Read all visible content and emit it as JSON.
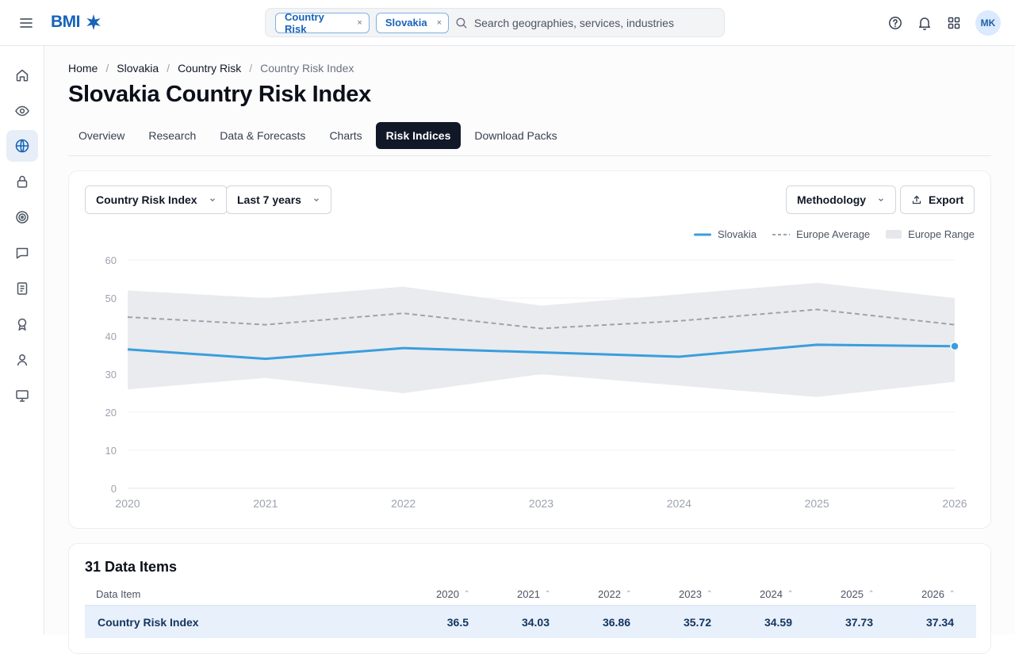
{
  "header": {
    "brand": "BMI",
    "chips": [
      {
        "label": "Country Risk",
        "remove": "×"
      },
      {
        "label": "Slovakia",
        "remove": "×"
      }
    ],
    "search_placeholder": "Search geographies, services, industries",
    "avatar_initials": "MK"
  },
  "sidebar": {
    "items": [
      {
        "icon": "home-icon"
      },
      {
        "icon": "eye-icon"
      },
      {
        "icon": "globe-icon",
        "active": true
      },
      {
        "icon": "lock-icon"
      },
      {
        "icon": "target-icon"
      },
      {
        "icon": "chat-icon"
      },
      {
        "icon": "document-icon"
      },
      {
        "icon": "award-icon"
      },
      {
        "icon": "user-icon"
      },
      {
        "icon": "monitor-icon"
      }
    ]
  },
  "breadcrumb": {
    "items": [
      "Home",
      "Slovakia",
      "Country Risk",
      "Country Risk Index"
    ],
    "sep": "/"
  },
  "page": {
    "title": "Slovakia Country Risk Index"
  },
  "tabs": [
    "Overview",
    "Research",
    "Data & Forecasts",
    "Charts",
    "Risk Indices",
    "Download Packs"
  ],
  "controls": {
    "index_select": "Country Risk Index",
    "range_select": "Last 7 years",
    "methodology": "Methodology",
    "export": "Export"
  },
  "colors": {
    "accent": "#1763b8",
    "slovakia_line": "#3b9ddd",
    "average_line": "#9ca3af",
    "range_band": "#e5e7eb",
    "active_tab": "#111827",
    "row_highlight": "#e7f0fb"
  },
  "chart_data": {
    "type": "line",
    "x": [
      "2020",
      "2021",
      "2022",
      "2023",
      "2024",
      "2025",
      "2026"
    ],
    "ylim": [
      0,
      60
    ],
    "yticks": [
      0,
      10,
      20,
      30,
      40,
      50,
      60
    ],
    "grid": true,
    "legend_position": "top-right",
    "series": [
      {
        "name": "Slovakia",
        "values": [
          36.5,
          34.03,
          36.86,
          35.72,
          34.59,
          37.73,
          37.34
        ]
      },
      {
        "name": "Europe Average",
        "values": [
          45,
          43,
          46,
          42,
          44,
          47,
          43
        ]
      }
    ],
    "band": {
      "name": "Europe Range",
      "low": [
        26,
        29,
        25,
        30,
        27,
        24,
        28
      ],
      "high": [
        52,
        50,
        53,
        48,
        51,
        54,
        50
      ]
    }
  },
  "table": {
    "title": "31 Data Items",
    "header_first": "Data Item",
    "years": [
      "2020",
      "2021",
      "2022",
      "2023",
      "2024",
      "2025",
      "2026"
    ],
    "rows": [
      {
        "label": "Country Risk Index",
        "values": [
          "36.5",
          "34.03",
          "36.86",
          "35.72",
          "34.59",
          "37.73",
          "37.34"
        ]
      }
    ]
  }
}
